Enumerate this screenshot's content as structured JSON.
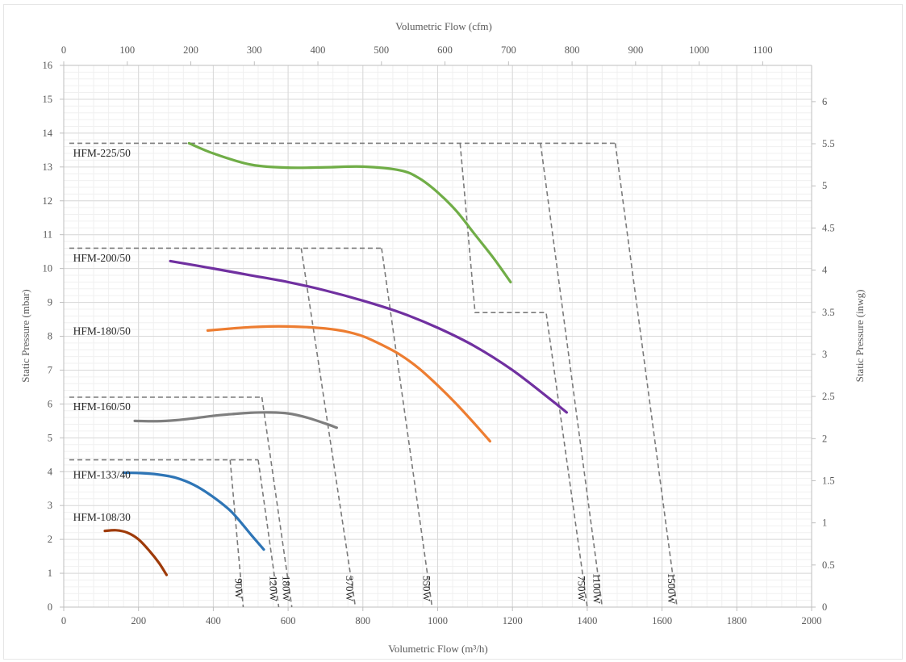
{
  "chart_data": {
    "type": "line",
    "title": "",
    "xlabel_bottom": "Volumetric Flow (m³/h)",
    "xlabel_top": "Volumetric Flow (cfm)",
    "ylabel_left": "Static Pressure (mbar)",
    "ylabel_right": "Static Pressure (inwg)",
    "xlim_bottom": [
      0,
      2000
    ],
    "xlim_top": [
      0,
      1177
    ],
    "ylim_left": [
      0,
      16
    ],
    "ylim_right": [
      0,
      6.43
    ],
    "x_ticks_bottom": [
      "0",
      "200",
      "400",
      "600",
      "800",
      "1000",
      "1200",
      "1400",
      "1600",
      "1800",
      "2000"
    ],
    "x_ticks_top": [
      "0",
      "100",
      "200",
      "300",
      "400",
      "500",
      "600",
      "700",
      "800",
      "900",
      "1000",
      "1100"
    ],
    "y_ticks_left": [
      "0",
      "1",
      "2",
      "3",
      "4",
      "5",
      "6",
      "7",
      "8",
      "9",
      "10",
      "11",
      "12",
      "13",
      "14",
      "15",
      "16"
    ],
    "y_ticks_right": [
      "0",
      "0.5",
      "1",
      "1.5",
      "2",
      "2.5",
      "3",
      "3.5",
      "4",
      "4.5",
      "5",
      "5.5",
      "6"
    ],
    "grid": true,
    "series": [
      {
        "name": "HFM-108/30",
        "color": "#9e3a09",
        "x": [
          110,
          140,
          170,
          200,
          230,
          255,
          275
        ],
        "y": [
          2.25,
          2.27,
          2.2,
          2.0,
          1.65,
          1.3,
          0.95
        ]
      },
      {
        "name": "HFM-133/40",
        "color": "#2e75b6",
        "x": [
          160,
          200,
          250,
          300,
          350,
          400,
          450,
          500,
          535
        ],
        "y": [
          3.97,
          3.96,
          3.92,
          3.82,
          3.6,
          3.25,
          2.8,
          2.15,
          1.7
        ]
      },
      {
        "name": "HFM-160/50",
        "color": "#7f7f7f",
        "x": [
          190,
          250,
          300,
          350,
          400,
          450,
          500,
          550,
          600,
          650,
          700,
          730
        ],
        "y": [
          5.5,
          5.49,
          5.52,
          5.58,
          5.65,
          5.7,
          5.74,
          5.75,
          5.72,
          5.6,
          5.42,
          5.3
        ]
      },
      {
        "name": "HFM-180/50",
        "color": "#ed7d31",
        "x": [
          385,
          450,
          500,
          550,
          600,
          650,
          700,
          750,
          800,
          850,
          900,
          950,
          1000,
          1050,
          1100,
          1140
        ],
        "y": [
          8.17,
          8.23,
          8.27,
          8.29,
          8.29,
          8.27,
          8.23,
          8.15,
          8.0,
          7.75,
          7.45,
          7.05,
          6.55,
          6.0,
          5.4,
          4.9
        ]
      },
      {
        "name": "HFM-200/50",
        "color": "#7030a0",
        "x": [
          285,
          400,
          500,
          600,
          700,
          800,
          900,
          1000,
          1100,
          1200,
          1300,
          1345
        ],
        "y": [
          10.22,
          10.0,
          9.8,
          9.6,
          9.35,
          9.05,
          8.7,
          8.25,
          7.7,
          7.0,
          6.15,
          5.75
        ]
      },
      {
        "name": "HFM-225/50",
        "color": "#70ad47",
        "x": [
          335,
          400,
          500,
          600,
          700,
          800,
          900,
          950,
          1000,
          1050,
          1100,
          1150,
          1195
        ],
        "y": [
          13.7,
          13.4,
          13.07,
          12.98,
          12.99,
          13.01,
          12.9,
          12.67,
          12.25,
          11.7,
          11.0,
          10.3,
          9.6
        ]
      }
    ],
    "power_limits": [
      {
        "label": "90W",
        "x": [
          445,
          480
        ],
        "y": [
          4.35,
          0
        ]
      },
      {
        "label": "120W",
        "x": [
          520,
          575
        ],
        "y": [
          4.35,
          0
        ]
      },
      {
        "label": "180W",
        "x": [
          530,
          610
        ],
        "y": [
          6.2,
          0
        ]
      },
      {
        "label": "370W",
        "x": [
          635,
          780
        ],
        "y": [
          10.6,
          0
        ]
      },
      {
        "label": "550W",
        "x": [
          850,
          985
        ],
        "y": [
          10.6,
          0
        ]
      },
      {
        "label": "750W",
        "x": [
          1060,
          1100,
          1290,
          1400
        ],
        "y": [
          13.7,
          8.7,
          8.7,
          0
        ]
      },
      {
        "label": "1100W",
        "x": [
          1275,
          1440
        ],
        "y": [
          13.7,
          0
        ]
      },
      {
        "label": "1500W",
        "x": [
          1475,
          1640
        ],
        "y": [
          13.7,
          0
        ]
      }
    ],
    "envelopes": [
      {
        "x": [
          15,
          1475
        ],
        "y": [
          13.7,
          13.7
        ]
      },
      {
        "x": [
          15,
          850
        ],
        "y": [
          10.6,
          10.6
        ]
      },
      {
        "x": [
          15,
          530
        ],
        "y": [
          6.2,
          6.2
        ]
      },
      {
        "x": [
          15,
          520
        ],
        "y": [
          4.35,
          4.35
        ]
      }
    ],
    "series_labels": [
      {
        "text": "HFM-225/50",
        "x": 25,
        "y": 13.3
      },
      {
        "text": "HFM-200/50",
        "x": 25,
        "y": 10.2
      },
      {
        "text": "HFM-180/50",
        "x": 25,
        "y": 8.05
      },
      {
        "text": "HFM-160/50",
        "x": 25,
        "y": 5.82
      },
      {
        "text": "HFM-133/40",
        "x": 25,
        "y": 3.8
      },
      {
        "text": "HFM-108/30",
        "x": 25,
        "y": 2.55
      }
    ]
  }
}
